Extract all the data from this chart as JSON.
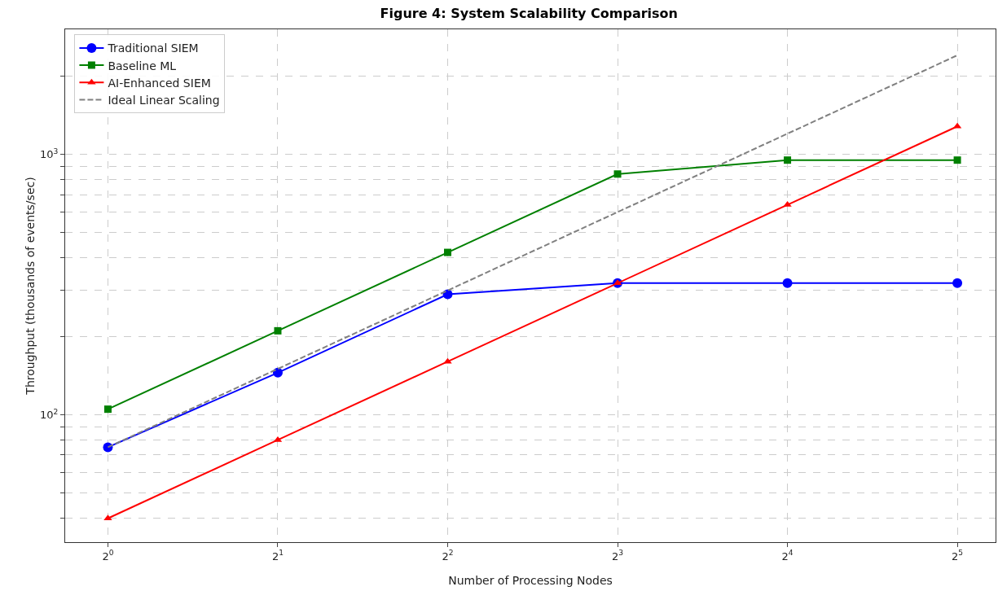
{
  "chart_data": {
    "type": "line",
    "title": "Figure 4: System Scalability Comparison",
    "xlabel": "Number of Processing Nodes",
    "ylabel": "Throughput (thousands of events/sec)",
    "x": [
      1,
      2,
      4,
      8,
      16,
      32
    ],
    "series": [
      {
        "name": "Traditional SIEM",
        "color": "#0000ff",
        "marker": "circle",
        "line_style": "solid",
        "values": [
          75,
          145,
          290,
          320,
          320,
          320
        ]
      },
      {
        "name": "Baseline ML",
        "color": "#008000",
        "marker": "square",
        "line_style": "solid",
        "values": [
          105,
          210,
          420,
          840,
          950,
          950
        ]
      },
      {
        "name": "AI-Enhanced SIEM",
        "color": "#ff0000",
        "marker": "triangle",
        "line_style": "solid",
        "values": [
          40,
          80,
          160,
          320,
          640,
          1280
        ]
      },
      {
        "name": "Ideal Linear Scaling",
        "color": "#808080",
        "marker": "none",
        "line_style": "dashed",
        "values": [
          75,
          150,
          300,
          600,
          1200,
          2400
        ]
      }
    ],
    "log": "xy",
    "grid": true,
    "legend": "top left",
    "xlim": [
      0.84,
      37.4
    ],
    "xticks": [
      {
        "value": 1,
        "label": "2$^{0}$"
      },
      {
        "value": 2,
        "label": "2$^{1}$"
      },
      {
        "value": 4,
        "label": "2$^{2}$"
      },
      {
        "value": 8,
        "label": "2$^{3}$"
      },
      {
        "value": 16,
        "label": "2$^{4}$"
      },
      {
        "value": 32,
        "label": "2$^{5}$"
      }
    ],
    "ylim": [
      32.4,
      3020
    ],
    "yticks": [
      {
        "value": 40,
        "label": null
      },
      {
        "value": 50,
        "label": null
      },
      {
        "value": 60,
        "label": null
      },
      {
        "value": 70,
        "label": null
      },
      {
        "value": 80,
        "label": null
      },
      {
        "value": 90,
        "label": null
      },
      {
        "value": 100,
        "label": "10$^{2}$"
      },
      {
        "value": 200,
        "label": null
      },
      {
        "value": 300,
        "label": null
      },
      {
        "value": 400,
        "label": null
      },
      {
        "value": 500,
        "label": null
      },
      {
        "value": 600,
        "label": null
      },
      {
        "value": 700,
        "label": null
      },
      {
        "value": 800,
        "label": null
      },
      {
        "value": 900,
        "label": null
      },
      {
        "value": 1000,
        "label": "10$^{3}$"
      },
      {
        "value": 2000,
        "label": null
      }
    ]
  }
}
